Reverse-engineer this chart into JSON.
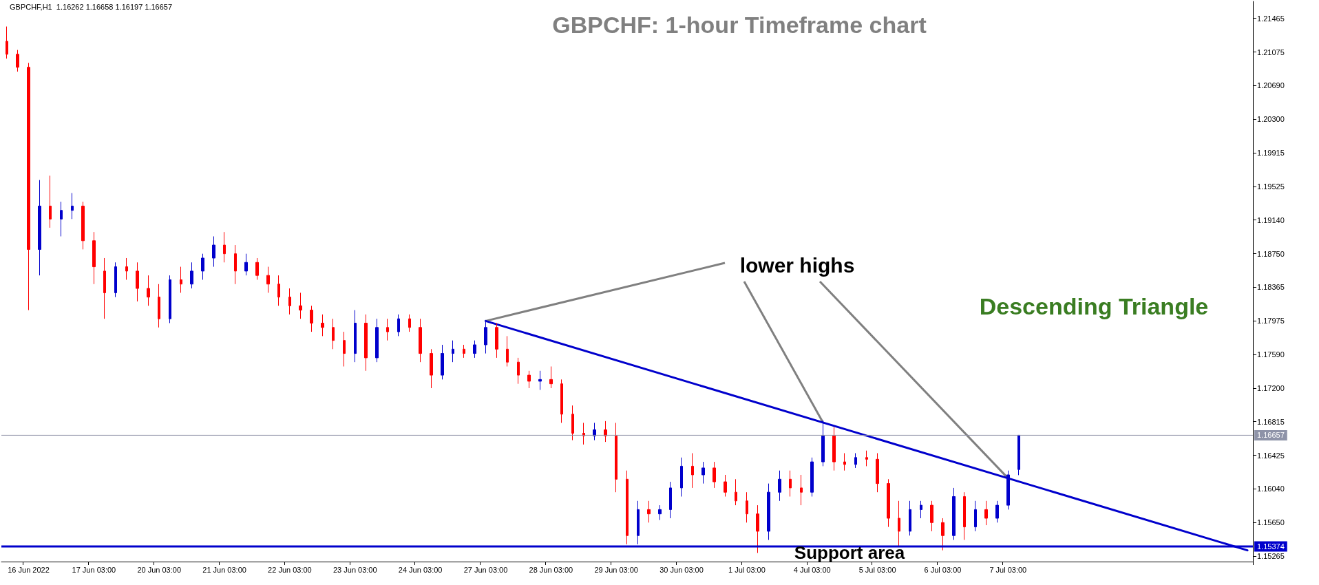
{
  "chart_data": {
    "type": "candlestick",
    "title": "GBPCHF: 1-hour Timeframe chart",
    "annotations": [
      "GBPCHF,H1  1.16262 1.16658 1.16197 1.16657",
      {
        "text": "lower highs",
        "x": "27 Jun 03:00",
        "y": 1.17975
      },
      "Descending Triangle",
      "Support area"
    ],
    "categories": [
      null,
      null,
      "16 Jun 2022",
      null,
      null,
      null,
      null,
      null,
      "17 Jun 03:00",
      null,
      null,
      null,
      null,
      null,
      "20 Jun 03:00",
      null,
      null,
      null,
      null,
      null,
      "21 Jun 03:00",
      null,
      null,
      null,
      null,
      null,
      "22 Jun 03:00",
      null,
      null,
      null,
      null,
      null,
      "23 Jun 03:00",
      null,
      null,
      null,
      null,
      null,
      "24 Jun 03:00",
      null,
      null,
      null,
      null,
      null,
      "27 Jun 03:00",
      null,
      null,
      null,
      null,
      null,
      "28 Jun 03:00",
      null,
      null,
      null,
      null,
      null,
      "29 Jun 03:00",
      null,
      null,
      null,
      null,
      null,
      "30 Jun 03:00",
      null,
      null,
      null,
      null,
      null,
      "1 Jul 03:00",
      null,
      null,
      null,
      null,
      null,
      "4 Jul 03:00",
      null,
      null,
      null,
      null,
      null,
      "5 Jul 03:00",
      null,
      null,
      null,
      null,
      null,
      "6 Jul 03:00",
      null,
      null,
      null,
      null,
      null,
      "7 Jul 03:00",
      null,
      null,
      null,
      null,
      null,
      null,
      null,
      null,
      null,
      null,
      null,
      null,
      null,
      null,
      null,
      null,
      null,
      null,
      null,
      null,
      null,
      null
    ],
    "series": [
      {
        "type": "candlestick",
        "colors": [
          "#ff0000",
          "#ff0000",
          "#ff0000",
          "#0000cc",
          "#ff0000",
          "#0000cc",
          "#0000cc",
          "#ff0000",
          "#ff0000",
          "#ff0000",
          "#0000cc",
          "#ff0000",
          "#ff0000",
          "#ff0000",
          "#ff0000",
          "#0000cc",
          "#ff0000",
          "#0000cc",
          "#0000cc",
          "#0000cc",
          "#ff0000",
          "#ff0000",
          "#0000cc",
          "#ff0000",
          "#ff0000",
          "#ff0000",
          "#ff0000",
          "#ff0000",
          "#ff0000",
          "#ff0000",
          "#ff0000",
          "#ff0000",
          "#0000cc",
          "#ff0000",
          "#0000cc",
          "#ff0000",
          "#0000cc",
          "#ff0000",
          "#ff0000",
          "#ff0000",
          "#0000cc",
          "#0000cc",
          "#ff0000",
          "#0000cc",
          "#0000cc",
          "#ff0000",
          "#ff0000",
          "#ff0000",
          "#ff0000",
          "#0000cc",
          "#ff0000",
          "#ff0000",
          "#ff0000",
          "#ff0000",
          "#0000cc",
          "#ff0000",
          "#ff0000",
          "#ff0000",
          "#0000cc",
          "#ff0000",
          "#0000cc",
          "#0000cc",
          "#0000cc",
          "#ff0000",
          "#0000cc",
          "#ff0000",
          "#ff0000",
          "#ff0000",
          "#ff0000",
          "#ff0000",
          "#0000cc",
          "#0000cc",
          "#ff0000",
          "#ff0000",
          "#0000cc",
          "#0000cc",
          "#ff0000",
          "#ff0000",
          "#0000cc",
          "#ff0000",
          "#ff0000",
          "#ff0000",
          "#ff0000",
          "#0000cc",
          "#0000cc",
          "#ff0000",
          "#ff0000",
          "#0000cc",
          "#ff0000",
          "#0000cc",
          "#ff0000",
          "#0000cc",
          "#0000cc",
          "#0000cc",
          null,
          null,
          null,
          null,
          null,
          null,
          null,
          null,
          null,
          null,
          null,
          null,
          null,
          null,
          null,
          null,
          null,
          null,
          null,
          null,
          null
        ],
        "ohlc": [
          [
            1.212,
            1.2137,
            1.21,
            1.2105
          ],
          [
            1.2105,
            1.211,
            1.2085,
            1.209
          ],
          [
            1.209,
            1.2095,
            1.181,
            1.188
          ],
          [
            1.188,
            1.196,
            1.185,
            1.193
          ],
          [
            1.193,
            1.1965,
            1.1905,
            1.1915
          ],
          [
            1.1915,
            1.1935,
            1.1895,
            1.1925
          ],
          [
            1.1925,
            1.1945,
            1.1915,
            1.193
          ],
          [
            1.193,
            1.1935,
            1.188,
            1.189
          ],
          [
            1.189,
            1.19,
            1.184,
            1.186
          ],
          [
            1.1855,
            1.187,
            1.18,
            1.183
          ],
          [
            1.183,
            1.1865,
            1.1825,
            1.186
          ],
          [
            1.186,
            1.187,
            1.1845,
            1.1855
          ],
          [
            1.1855,
            1.1865,
            1.182,
            1.1835
          ],
          [
            1.1835,
            1.185,
            1.1815,
            1.1825
          ],
          [
            1.1825,
            1.184,
            1.179,
            1.18
          ],
          [
            1.18,
            1.185,
            1.1795,
            1.1845
          ],
          [
            1.1845,
            1.186,
            1.183,
            1.184
          ],
          [
            1.184,
            1.1865,
            1.1835,
            1.1855
          ],
          [
            1.1855,
            1.1875,
            1.1845,
            1.187
          ],
          [
            1.187,
            1.1895,
            1.186,
            1.1885
          ],
          [
            1.1885,
            1.19,
            1.1865,
            1.1875
          ],
          [
            1.1875,
            1.1885,
            1.184,
            1.1855
          ],
          [
            1.1855,
            1.1875,
            1.185,
            1.1865
          ],
          [
            1.1865,
            1.187,
            1.1845,
            1.185
          ],
          [
            1.185,
            1.186,
            1.183,
            1.184
          ],
          [
            1.184,
            1.185,
            1.1815,
            1.1825
          ],
          [
            1.1825,
            1.1835,
            1.1805,
            1.1815
          ],
          [
            1.1815,
            1.183,
            1.18,
            1.181
          ],
          [
            1.181,
            1.1815,
            1.1785,
            1.1795
          ],
          [
            1.1795,
            1.1805,
            1.178,
            1.179
          ],
          [
            1.179,
            1.18,
            1.1765,
            1.1775
          ],
          [
            1.1775,
            1.1785,
            1.1745,
            1.176
          ],
          [
            1.176,
            1.181,
            1.175,
            1.1795
          ],
          [
            1.1795,
            1.1805,
            1.174,
            1.1755
          ],
          [
            1.1755,
            1.18,
            1.175,
            1.179
          ],
          [
            1.179,
            1.18,
            1.1775,
            1.1785
          ],
          [
            1.1785,
            1.1805,
            1.178,
            1.18
          ],
          [
            1.18,
            1.1805,
            1.1785,
            1.179
          ],
          [
            1.179,
            1.18,
            1.175,
            1.176
          ],
          [
            1.176,
            1.1765,
            1.172,
            1.1735
          ],
          [
            1.1735,
            1.177,
            1.173,
            1.176
          ],
          [
            1.176,
            1.1775,
            1.175,
            1.1765
          ],
          [
            1.1765,
            1.177,
            1.1755,
            1.176
          ],
          [
            1.176,
            1.1775,
            1.1755,
            1.177
          ],
          [
            1.177,
            1.1798,
            1.176,
            1.179
          ],
          [
            1.179,
            1.1795,
            1.1755,
            1.1765
          ],
          [
            1.1765,
            1.178,
            1.1745,
            1.175
          ],
          [
            1.175,
            1.1755,
            1.1725,
            1.1735
          ],
          [
            1.1735,
            1.174,
            1.172,
            1.1728
          ],
          [
            1.1728,
            1.174,
            1.1718,
            1.173
          ],
          [
            1.173,
            1.1745,
            1.172,
            1.1725
          ],
          [
            1.1725,
            1.173,
            1.168,
            1.169
          ],
          [
            1.169,
            1.17,
            1.166,
            1.1668
          ],
          [
            1.1668,
            1.168,
            1.1655,
            1.1665
          ],
          [
            1.1665,
            1.168,
            1.166,
            1.1672
          ],
          [
            1.1672,
            1.1682,
            1.1658,
            1.1665
          ],
          [
            1.1665,
            1.168,
            1.16,
            1.1615
          ],
          [
            1.1615,
            1.1625,
            1.154,
            1.155
          ],
          [
            1.155,
            1.159,
            1.154,
            1.158
          ],
          [
            1.158,
            1.159,
            1.1565,
            1.1575
          ],
          [
            1.1575,
            1.1585,
            1.1568,
            1.158
          ],
          [
            1.158,
            1.1612,
            1.157,
            1.1605
          ],
          [
            1.1605,
            1.164,
            1.1595,
            1.163
          ],
          [
            1.163,
            1.1645,
            1.1605,
            1.162
          ],
          [
            1.162,
            1.1635,
            1.161,
            1.1628
          ],
          [
            1.1628,
            1.1635,
            1.1605,
            1.1612
          ],
          [
            1.1612,
            1.162,
            1.1595,
            1.16
          ],
          [
            1.16,
            1.1615,
            1.1585,
            1.159
          ],
          [
            1.159,
            1.16,
            1.1565,
            1.1575
          ],
          [
            1.1575,
            1.1585,
            1.153,
            1.1555
          ],
          [
            1.1555,
            1.161,
            1.1545,
            1.16
          ],
          [
            1.16,
            1.1625,
            1.159,
            1.1615
          ],
          [
            1.1615,
            1.1625,
            1.1595,
            1.1605
          ],
          [
            1.1605,
            1.162,
            1.1585,
            1.16
          ],
          [
            1.16,
            1.164,
            1.1595,
            1.1635
          ],
          [
            1.1635,
            1.1683,
            1.163,
            1.1665
          ],
          [
            1.1665,
            1.1675,
            1.1625,
            1.1635
          ],
          [
            1.1635,
            1.1645,
            1.1625,
            1.1632
          ],
          [
            1.1632,
            1.1645,
            1.1628,
            1.164
          ],
          [
            1.164,
            1.1648,
            1.163,
            1.1638
          ],
          [
            1.1638,
            1.1645,
            1.16,
            1.161
          ],
          [
            1.161,
            1.1615,
            1.156,
            1.157
          ],
          [
            1.157,
            1.159,
            1.1538,
            1.1555
          ],
          [
            1.1555,
            1.159,
            1.155,
            1.158
          ],
          [
            1.158,
            1.159,
            1.157,
            1.1585
          ],
          [
            1.1585,
            1.159,
            1.1555,
            1.1565
          ],
          [
            1.1565,
            1.157,
            1.1533,
            1.155
          ],
          [
            1.155,
            1.1605,
            1.1545,
            1.1595
          ],
          [
            1.1595,
            1.16,
            1.1545,
            1.156
          ],
          [
            1.156,
            1.159,
            1.1555,
            1.158
          ],
          [
            1.158,
            1.159,
            1.1562,
            1.157
          ],
          [
            1.157,
            1.159,
            1.1565,
            1.1585
          ],
          [
            1.1585,
            1.1625,
            1.158,
            1.162
          ],
          [
            1.16262,
            1.16658,
            1.16197,
            1.16657
          ],
          null,
          null,
          null,
          null,
          null,
          null,
          null,
          null,
          null,
          null,
          null,
          null,
          null,
          null,
          null,
          null,
          null,
          null,
          null,
          null,
          null
        ]
      },
      {
        "type": "line",
        "color": "#0000cc",
        "values": [
          null,
          null,
          null,
          null,
          null,
          null,
          null,
          null,
          null,
          null,
          null,
          null,
          null,
          null,
          null,
          null,
          null,
          null,
          null,
          null,
          null,
          null,
          null,
          null,
          null,
          null,
          null,
          null,
          null,
          null,
          null,
          null,
          null,
          null,
          null,
          null,
          null,
          null,
          null,
          null,
          null,
          null,
          null,
          null,
          1.17975,
          null,
          null,
          null,
          null,
          null,
          null,
          null,
          null,
          null,
          null,
          null,
          null,
          null,
          null,
          null,
          null,
          null,
          null,
          null,
          null,
          null,
          null,
          null,
          null,
          null,
          null,
          null,
          null,
          null,
          null,
          null,
          null,
          null,
          null,
          null,
          null,
          null,
          null,
          null,
          null,
          null,
          null,
          null,
          null,
          null,
          null,
          null,
          null,
          null,
          null,
          null,
          null,
          null,
          null,
          null,
          null,
          null,
          null,
          null,
          null,
          null,
          null,
          null,
          null,
          null,
          null,
          null,
          null,
          null,
          1.1533
        ]
      }
    ],
    "ylim": [
      1.152,
      1.2166
    ],
    "yticks": [
      {
        "value": 1.15265,
        "label": "1.15265"
      },
      {
        "value": 1.1565,
        "label": "1.15650"
      },
      {
        "value": 1.1604,
        "label": "1.16040"
      },
      {
        "value": 1.16425,
        "label": "1.16425"
      },
      {
        "value": 1.16815,
        "label": "1.16815"
      },
      {
        "value": 1.172,
        "label": "1.17200"
      },
      {
        "value": 1.1759,
        "label": "1.17590"
      },
      {
        "value": 1.17975,
        "label": "1.17975"
      },
      {
        "value": 1.18365,
        "label": "1.18365"
      },
      {
        "value": 1.1875,
        "label": "1.18750"
      },
      {
        "value": 1.1914,
        "label": "1.19140"
      },
      {
        "value": 1.19525,
        "label": "1.19525"
      },
      {
        "value": 1.19915,
        "label": "1.19915"
      },
      {
        "value": 1.203,
        "label": "1.20300"
      },
      {
        "value": 1.2069,
        "label": "1.20690"
      },
      {
        "value": 1.21075,
        "label": "1.21075"
      },
      {
        "value": 1.21465,
        "label": "1.21465"
      }
    ],
    "ref_lines": [
      {
        "axis": "y",
        "value": 1.16657,
        "label": "1.16657",
        "color": "#8e93a8",
        "line_style": "solid"
      },
      {
        "axis": "y",
        "value": 1.15374,
        "label": "1.15374",
        "color": "#0000cc",
        "line_style": "solid"
      }
    ],
    "grid": false
  }
}
